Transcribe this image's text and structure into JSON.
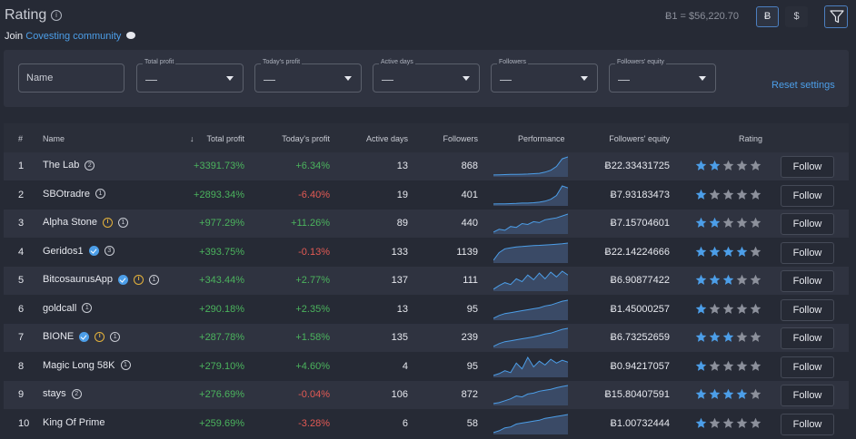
{
  "header": {
    "title": "Rating",
    "join_prefix": "Join",
    "community_link": "Covesting community",
    "rate": "Ƀ1 = $56,220.70",
    "btc_label": "Ƀ",
    "usd_label": "$"
  },
  "filters": {
    "name_placeholder": "Name",
    "total_profit": {
      "label": "Total profit",
      "value": "—"
    },
    "todays_profit": {
      "label": "Today's profit",
      "value": "—"
    },
    "active_days": {
      "label": "Active days",
      "value": "—"
    },
    "followers": {
      "label": "Followers",
      "value": "—"
    },
    "followers_equity": {
      "label": "Followers' equity",
      "value": "—"
    },
    "reset": "Reset settings"
  },
  "table": {
    "columns": {
      "rank": "#",
      "name": "Name",
      "total_profit": "Total profit",
      "sort_arrow": "↓",
      "todays_profit": "Today's profit",
      "active_days": "Active days",
      "followers": "Followers",
      "performance": "Performance",
      "equity": "Followers' equity",
      "rating": "Rating"
    },
    "follow_label": "Follow",
    "rows": [
      {
        "rank": "1",
        "name": "The Lab",
        "badge_num": "2",
        "verified": false,
        "warn": false,
        "total_profit": "+3391.73%",
        "todays_profit": "+6.34%",
        "today_sign": "pos",
        "active_days": "13",
        "followers": "868",
        "equity": "Ƀ22.33431725",
        "stars": 2,
        "perf": [
          0.05,
          0.06,
          0.07,
          0.08,
          0.08,
          0.09,
          0.1,
          0.12,
          0.14,
          0.2,
          0.3,
          0.5,
          0.9,
          1.0
        ]
      },
      {
        "rank": "2",
        "name": "SBOtradre",
        "badge_num": "1",
        "verified": false,
        "warn": false,
        "total_profit": "+2893.34%",
        "todays_profit": "-6.40%",
        "today_sign": "neg",
        "active_days": "19",
        "followers": "401",
        "equity": "Ƀ7.93183473",
        "stars": 1,
        "perf": [
          0.05,
          0.06,
          0.06,
          0.07,
          0.08,
          0.1,
          0.1,
          0.12,
          0.15,
          0.2,
          0.3,
          0.5,
          1.0,
          0.9
        ]
      },
      {
        "rank": "3",
        "name": "Alpha Stone",
        "badge_num": "1",
        "verified": false,
        "warn": true,
        "total_profit": "+977.29%",
        "todays_profit": "+11.26%",
        "today_sign": "pos",
        "active_days": "89",
        "followers": "440",
        "equity": "Ƀ7.15704601",
        "stars": 2,
        "perf": [
          0.05,
          0.2,
          0.15,
          0.35,
          0.3,
          0.5,
          0.45,
          0.6,
          0.55,
          0.7,
          0.75,
          0.8,
          0.9,
          1.0
        ]
      },
      {
        "rank": "4",
        "name": "Geridos1",
        "badge_num": "3",
        "verified": true,
        "warn": false,
        "total_profit": "+393.75%",
        "todays_profit": "-0.13%",
        "today_sign": "neg",
        "active_days": "133",
        "followers": "1139",
        "equity": "Ƀ22.14224666",
        "stars": 4,
        "perf": [
          0.1,
          0.5,
          0.7,
          0.75,
          0.8,
          0.82,
          0.85,
          0.87,
          0.88,
          0.9,
          0.92,
          0.94,
          0.96,
          1.0
        ]
      },
      {
        "rank": "5",
        "name": "BitcosaurusApp",
        "badge_num": "1",
        "verified": true,
        "warn": true,
        "total_profit": "+343.44%",
        "todays_profit": "+2.77%",
        "today_sign": "pos",
        "active_days": "137",
        "followers": "111",
        "equity": "Ƀ6.90877422",
        "stars": 3,
        "perf": [
          0.05,
          0.25,
          0.4,
          0.3,
          0.6,
          0.45,
          0.8,
          0.55,
          0.9,
          0.6,
          0.95,
          0.7,
          1.0,
          0.8
        ]
      },
      {
        "rank": "6",
        "name": "goldcall",
        "badge_num": "1",
        "verified": false,
        "warn": false,
        "total_profit": "+290.18%",
        "todays_profit": "+2.35%",
        "today_sign": "pos",
        "active_days": "13",
        "followers": "95",
        "equity": "Ƀ1.45000257",
        "stars": 1,
        "perf": [
          0.05,
          0.2,
          0.3,
          0.35,
          0.4,
          0.45,
          0.5,
          0.55,
          0.6,
          0.7,
          0.75,
          0.85,
          0.95,
          1.0
        ]
      },
      {
        "rank": "7",
        "name": "BIONE",
        "badge_num": "1",
        "verified": true,
        "warn": true,
        "total_profit": "+287.78%",
        "todays_profit": "+1.58%",
        "today_sign": "pos",
        "active_days": "135",
        "followers": "239",
        "equity": "Ƀ6.73252659",
        "stars": 3,
        "perf": [
          0.05,
          0.2,
          0.3,
          0.35,
          0.4,
          0.45,
          0.5,
          0.55,
          0.62,
          0.7,
          0.75,
          0.85,
          0.95,
          1.0
        ]
      },
      {
        "rank": "8",
        "name": "Magic Long 58K",
        "badge_num": "1",
        "verified": false,
        "warn": false,
        "total_profit": "+279.10%",
        "todays_profit": "+4.60%",
        "today_sign": "pos",
        "active_days": "4",
        "followers": "95",
        "equity": "Ƀ0.94217057",
        "stars": 1,
        "perf": [
          0.05,
          0.15,
          0.3,
          0.2,
          0.7,
          0.4,
          1.0,
          0.5,
          0.8,
          0.6,
          0.9,
          0.7,
          0.85,
          0.75
        ]
      },
      {
        "rank": "9",
        "name": "stays",
        "badge_num": "2",
        "verified": false,
        "warn": false,
        "total_profit": "+276.69%",
        "todays_profit": "-0.04%",
        "today_sign": "neg",
        "active_days": "106",
        "followers": "872",
        "equity": "Ƀ15.80407591",
        "stars": 4,
        "perf": [
          0.05,
          0.1,
          0.2,
          0.3,
          0.45,
          0.4,
          0.55,
          0.6,
          0.7,
          0.75,
          0.8,
          0.88,
          0.95,
          1.0
        ]
      },
      {
        "rank": "10",
        "name": "King Of Prime",
        "badge_num": "",
        "verified": false,
        "warn": false,
        "total_profit": "+259.69%",
        "todays_profit": "-3.28%",
        "today_sign": "neg",
        "active_days": "6",
        "followers": "58",
        "equity": "Ƀ1.00732444",
        "stars": 1,
        "perf": [
          0.05,
          0.15,
          0.3,
          0.35,
          0.5,
          0.55,
          0.6,
          0.65,
          0.7,
          0.8,
          0.85,
          0.9,
          0.95,
          1.0
        ]
      }
    ]
  },
  "colors": {
    "star_on": "#4c9ee8",
    "star_off": "#8c909b",
    "line": "#4c9ee8",
    "fill": "#3a4a66"
  }
}
